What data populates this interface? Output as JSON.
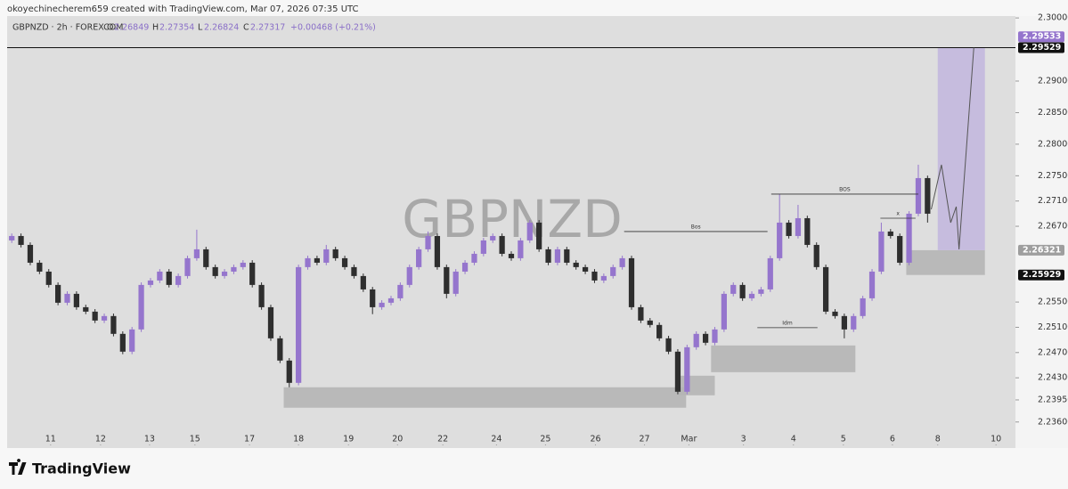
{
  "header": "okoyechinecherem659 created with TradingView.com, Mar 07, 2026 07:35 UTC",
  "footer": {
    "brand": "TradingView"
  },
  "chart_data": {
    "type": "candlestick",
    "watermark": "GBPNZD",
    "legend": {
      "symbol": "GBPNZD · 2h · FOREXCOM",
      "open_label": "O",
      "open": 2.26849,
      "high_label": "H",
      "high": 2.27354,
      "low_label": "L",
      "low": 2.26824,
      "close_label": "C",
      "close": 2.27317,
      "change": "+0.00468 (+0.21%)"
    },
    "up_color": "#9575cd",
    "down_color": "#2e2e2e",
    "ylim": [
      2.2323,
      2.3003
    ],
    "xlim": [
      -0.5,
      108.5
    ],
    "yticks": [
      {
        "value": 2.3,
        "label": "2.30000"
      },
      {
        "value": 2.29,
        "label": "2.29000"
      },
      {
        "value": 2.285,
        "label": "2.28500"
      },
      {
        "value": 2.28,
        "label": "2.28000"
      },
      {
        "value": 2.275,
        "label": "2.27500"
      },
      {
        "value": 2.271,
        "label": "2.27100"
      },
      {
        "value": 2.267,
        "label": "2.26700"
      },
      {
        "value": 2.255,
        "label": "2.25500"
      },
      {
        "value": 2.251,
        "label": "2.25100"
      },
      {
        "value": 2.247,
        "label": "2.24700"
      },
      {
        "value": 2.243,
        "label": "2.24300"
      },
      {
        "value": 2.2395,
        "label": "2.23950"
      },
      {
        "value": 2.236,
        "label": "2.23600"
      }
    ],
    "xticks": [
      {
        "value": 4.2,
        "label": "11"
      },
      {
        "value": 9.6,
        "label": "12"
      },
      {
        "value": 14.9,
        "label": "13"
      },
      {
        "value": 19.8,
        "label": "15"
      },
      {
        "value": 25.7,
        "label": "17"
      },
      {
        "value": 31.0,
        "label": "18"
      },
      {
        "value": 36.4,
        "label": "19"
      },
      {
        "value": 41.7,
        "label": "20"
      },
      {
        "value": 46.6,
        "label": "22"
      },
      {
        "value": 52.4,
        "label": "24"
      },
      {
        "value": 57.7,
        "label": "25"
      },
      {
        "value": 63.1,
        "label": "26"
      },
      {
        "value": 68.4,
        "label": "27"
      },
      {
        "value": 73.2,
        "label": "Mar"
      },
      {
        "value": 79.1,
        "label": "3"
      },
      {
        "value": 84.5,
        "label": "4"
      },
      {
        "value": 89.9,
        "label": "5"
      },
      {
        "value": 95.2,
        "label": "6"
      },
      {
        "value": 100.1,
        "label": "8"
      },
      {
        "value": 106.4,
        "label": "10"
      }
    ],
    "price_labels": [
      {
        "value": 2.29533,
        "color": "#9575cd"
      },
      {
        "value": 2.29529,
        "color": "#111111"
      },
      {
        "value": 2.26321,
        "color": "#9e9e9e"
      },
      {
        "value": 2.25929,
        "color": "#111111"
      }
    ],
    "hline": {
      "value": 2.29529,
      "color": "#111111"
    },
    "zones": [
      {
        "x0": 29.4,
        "x1": 72.9,
        "y0": 2.2415,
        "y1": 2.23826,
        "color": "#b5b5b5"
      },
      {
        "x0": 72.1,
        "x1": 76.0,
        "y0": 2.24333,
        "y1": 2.24023,
        "color": "#b5b5b5"
      },
      {
        "x0": 75.6,
        "x1": 91.2,
        "y0": 2.24812,
        "y1": 2.24389,
        "color": "#b5b5b5"
      },
      {
        "x0": 96.7,
        "x1": 105.2,
        "y0": 2.26321,
        "y1": 2.25929,
        "color": "#b5b5b5"
      },
      {
        "x0": 100.1,
        "x1": 105.2,
        "y0": 2.29529,
        "y1": 2.26321,
        "color": "#c3b8de"
      }
    ],
    "annotations": [
      {
        "text": "Bos",
        "x0": 66.2,
        "x1": 81.7,
        "y": 2.26617
      },
      {
        "text": "BOS",
        "x0": 82.1,
        "x1": 98.0,
        "y": 2.27209
      },
      {
        "text": "Idm",
        "x0": 80.6,
        "x1": 87.1,
        "y": 2.25094
      },
      {
        "text": "x",
        "x0": 93.9,
        "x1": 97.7,
        "y": 2.26828
      }
    ],
    "projection": {
      "x": [
        99.4,
        100.5,
        101.5,
        102.1,
        102.4,
        104.0
      ],
      "y": [
        2.26969,
        2.27674,
        2.26758,
        2.27011,
        2.26335,
        2.29529
      ]
    },
    "ohlc": [
      [
        2.26476,
        2.26586,
        2.26436,
        2.26546
      ],
      [
        2.26546,
        2.26586,
        2.26365,
        2.26405
      ],
      [
        2.26405,
        2.26445,
        2.26083,
        2.26123
      ],
      [
        2.26123,
        2.26163,
        2.25942,
        2.25982
      ],
      [
        2.25982,
        2.26022,
        2.25731,
        2.25771
      ],
      [
        2.25771,
        2.25811,
        2.25449,
        2.25489
      ],
      [
        2.25489,
        2.2567,
        2.25449,
        2.2563
      ],
      [
        2.2563,
        2.2567,
        2.25378,
        2.25418
      ],
      [
        2.25418,
        2.25458,
        2.25308,
        2.25348
      ],
      [
        2.25348,
        2.25388,
        2.25167,
        2.25207
      ],
      [
        2.25207,
        2.25318,
        2.25167,
        2.25278
      ],
      [
        2.25278,
        2.25318,
        2.24956,
        2.24996
      ],
      [
        2.24996,
        2.25036,
        2.24674,
        2.24714
      ],
      [
        2.24714,
        2.25106,
        2.24674,
        2.25066
      ],
      [
        2.25066,
        2.25811,
        2.25026,
        2.25771
      ],
      [
        2.25771,
        2.25881,
        2.25731,
        2.25841
      ],
      [
        2.25841,
        2.26022,
        2.25801,
        2.25982
      ],
      [
        2.25982,
        2.26022,
        2.25731,
        2.25771
      ],
      [
        2.25771,
        2.25952,
        2.25731,
        2.25912
      ],
      [
        2.25912,
        2.26234,
        2.25872,
        2.26194
      ],
      [
        2.26194,
        2.26646,
        2.26154,
        2.26335
      ],
      [
        2.26335,
        2.26375,
        2.26013,
        2.26053
      ],
      [
        2.26053,
        2.26093,
        2.25872,
        2.25912
      ],
      [
        2.25912,
        2.26022,
        2.25872,
        2.25982
      ],
      [
        2.25982,
        2.26093,
        2.25942,
        2.26053
      ],
      [
        2.26053,
        2.26163,
        2.26013,
        2.26123
      ],
      [
        2.26123,
        2.26163,
        2.25731,
        2.25771
      ],
      [
        2.25771,
        2.25811,
        2.25378,
        2.25418
      ],
      [
        2.25418,
        2.25458,
        2.24885,
        2.24925
      ],
      [
        2.24925,
        2.24965,
        2.24533,
        2.24573
      ],
      [
        2.24573,
        2.24613,
        2.2415,
        2.2422
      ],
      [
        2.2422,
        2.26093,
        2.2418,
        2.26053
      ],
      [
        2.26053,
        2.26234,
        2.26013,
        2.26194
      ],
      [
        2.26194,
        2.26234,
        2.26083,
        2.26123
      ],
      [
        2.26123,
        2.26405,
        2.26083,
        2.26335
      ],
      [
        2.26335,
        2.26375,
        2.26154,
        2.26194
      ],
      [
        2.26194,
        2.26234,
        2.26013,
        2.26053
      ],
      [
        2.26053,
        2.26093,
        2.25872,
        2.25912
      ],
      [
        2.25912,
        2.25952,
        2.2566,
        2.257
      ],
      [
        2.257,
        2.2574,
        2.25308,
        2.25418
      ],
      [
        2.25418,
        2.25529,
        2.25378,
        2.25489
      ],
      [
        2.25489,
        2.25599,
        2.25449,
        2.25559
      ],
      [
        2.25559,
        2.25811,
        2.25519,
        2.25771
      ],
      [
        2.25771,
        2.26093,
        2.25731,
        2.26053
      ],
      [
        2.26053,
        2.26375,
        2.26013,
        2.26335
      ],
      [
        2.26335,
        2.26617,
        2.26295,
        2.26546
      ],
      [
        2.26546,
        2.26586,
        2.26013,
        2.26053
      ],
      [
        2.26053,
        2.26093,
        2.25559,
        2.2563
      ],
      [
        2.2563,
        2.26022,
        2.2559,
        2.25982
      ],
      [
        2.25982,
        2.26163,
        2.25942,
        2.26123
      ],
      [
        2.26123,
        2.26304,
        2.26083,
        2.26264
      ],
      [
        2.26264,
        2.26516,
        2.26224,
        2.26476
      ],
      [
        2.26476,
        2.26586,
        2.26436,
        2.26546
      ],
      [
        2.26546,
        2.26586,
        2.26224,
        2.26264
      ],
      [
        2.26264,
        2.26304,
        2.26154,
        2.26194
      ],
      [
        2.26194,
        2.26516,
        2.26154,
        2.26476
      ],
      [
        2.26476,
        2.26798,
        2.26436,
        2.26758
      ],
      [
        2.26758,
        2.26798,
        2.26295,
        2.26335
      ],
      [
        2.26335,
        2.26375,
        2.26083,
        2.26123
      ],
      [
        2.26123,
        2.26375,
        2.26083,
        2.26335
      ],
      [
        2.26335,
        2.26375,
        2.26083,
        2.26123
      ],
      [
        2.26123,
        2.26163,
        2.26013,
        2.26053
      ],
      [
        2.26053,
        2.26093,
        2.25942,
        2.25982
      ],
      [
        2.25982,
        2.26022,
        2.25801,
        2.25841
      ],
      [
        2.25841,
        2.25952,
        2.25801,
        2.25912
      ],
      [
        2.25912,
        2.26093,
        2.25872,
        2.26053
      ],
      [
        2.26053,
        2.26234,
        2.26013,
        2.26194
      ],
      [
        2.26194,
        2.26234,
        2.25378,
        2.25418
      ],
      [
        2.25418,
        2.25458,
        2.25167,
        2.25207
      ],
      [
        2.25207,
        2.25247,
        2.25097,
        2.25137
      ],
      [
        2.25137,
        2.25177,
        2.24885,
        2.24925
      ],
      [
        2.24925,
        2.24965,
        2.24674,
        2.24714
      ],
      [
        2.24714,
        2.24754,
        2.24039,
        2.24079
      ],
      [
        2.24079,
        2.24824,
        2.24039,
        2.24784
      ],
      [
        2.24784,
        2.25036,
        2.24744,
        2.24996
      ],
      [
        2.24996,
        2.25036,
        2.24815,
        2.24855
      ],
      [
        2.24855,
        2.25106,
        2.24815,
        2.25066
      ],
      [
        2.25066,
        2.2567,
        2.25026,
        2.2563
      ],
      [
        2.2563,
        2.25811,
        2.2559,
        2.25771
      ],
      [
        2.25771,
        2.25811,
        2.25519,
        2.25559
      ],
      [
        2.25559,
        2.2567,
        2.25519,
        2.2563
      ],
      [
        2.2563,
        2.2574,
        2.2559,
        2.257
      ],
      [
        2.257,
        2.26234,
        2.2566,
        2.26194
      ],
      [
        2.26194,
        2.27209,
        2.26154,
        2.26758
      ],
      [
        2.26758,
        2.26798,
        2.26506,
        2.26546
      ],
      [
        2.26546,
        2.27039,
        2.26506,
        2.26828
      ],
      [
        2.26828,
        2.26868,
        2.26365,
        2.26405
      ],
      [
        2.26405,
        2.26445,
        2.26013,
        2.26053
      ],
      [
        2.26053,
        2.26093,
        2.25308,
        2.25348
      ],
      [
        2.25348,
        2.25388,
        2.25238,
        2.25278
      ],
      [
        2.25278,
        2.25318,
        2.24925,
        2.25066
      ],
      [
        2.25066,
        2.25318,
        2.25026,
        2.25278
      ],
      [
        2.25278,
        2.25599,
        2.25238,
        2.25559
      ],
      [
        2.25559,
        2.26022,
        2.25519,
        2.25982
      ],
      [
        2.25982,
        2.26758,
        2.25942,
        2.26617
      ],
      [
        2.26617,
        2.26657,
        2.26506,
        2.26546
      ],
      [
        2.26546,
        2.26586,
        2.26083,
        2.26123
      ],
      [
        2.26123,
        2.26939,
        2.26083,
        2.26899
      ],
      [
        2.26899,
        2.27675,
        2.26859,
        2.27463
      ],
      [
        2.27463,
        2.27503,
        2.26758,
        2.26899
      ]
    ]
  }
}
